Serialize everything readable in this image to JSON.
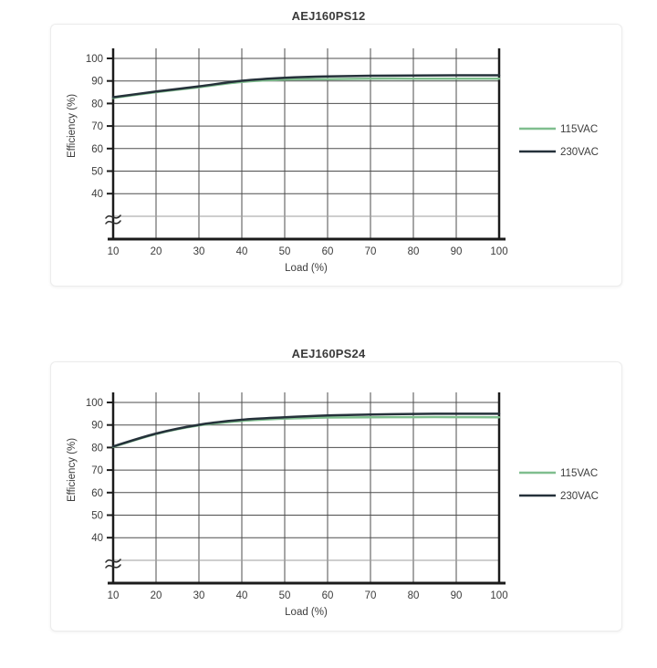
{
  "page": {
    "background_color": "#ffffff",
    "card_border_color": "#ececec"
  },
  "style": {
    "grid_color": "#4d4d4d",
    "break_gridline_color": "#9e9e9e",
    "axis_color": "#1b1b1b",
    "text_color": "#3c3c3c"
  },
  "chart_data": [
    {
      "type": "line",
      "title": "AEJ160PS12",
      "xlabel": "Load (%)",
      "ylabel": "Efficiency (%)",
      "x": [
        10,
        20,
        30,
        40,
        50,
        60,
        70,
        80,
        90,
        100
      ],
      "x_ticks": [
        10,
        20,
        30,
        40,
        50,
        60,
        70,
        80,
        90,
        100
      ],
      "y_ticks": [
        100,
        90,
        80,
        70,
        60,
        50,
        40
      ],
      "xlim": [
        10,
        100
      ],
      "ylim_display": [
        40,
        100
      ],
      "axis_break": true,
      "grid": true,
      "legend_position": "right",
      "series": [
        {
          "name": "115VAC",
          "color": "#7fbe8e",
          "values": [
            82.5,
            85.0,
            87.2,
            89.6,
            90.6,
            90.8,
            91.0,
            91.0,
            91.0,
            91.0
          ]
        },
        {
          "name": "230VAC",
          "color": "#25313a",
          "values": [
            82.8,
            85.3,
            87.6,
            90.1,
            91.4,
            92.0,
            92.3,
            92.4,
            92.5,
            92.5
          ]
        }
      ]
    },
    {
      "type": "line",
      "title": "AEJ160PS24",
      "xlabel": "Load (%)",
      "ylabel": "Efficiency (%)",
      "x": [
        10,
        20,
        30,
        40,
        50,
        60,
        70,
        80,
        90,
        100
      ],
      "x_ticks": [
        10,
        20,
        30,
        40,
        50,
        60,
        70,
        80,
        90,
        100
      ],
      "y_ticks": [
        100,
        90,
        80,
        70,
        60,
        50,
        40
      ],
      "xlim": [
        10,
        100
      ],
      "ylim_display": [
        40,
        100
      ],
      "axis_break": true,
      "grid": true,
      "legend_position": "right",
      "series": [
        {
          "name": "115VAC",
          "color": "#7fbe8e",
          "values": [
            80.3,
            86.0,
            89.8,
            91.8,
            92.8,
            93.3,
            93.4,
            93.5,
            93.5,
            93.4
          ]
        },
        {
          "name": "230VAC",
          "color": "#25313a",
          "values": [
            80.5,
            86.2,
            90.1,
            92.3,
            93.4,
            94.2,
            94.6,
            94.9,
            95.0,
            95.0
          ]
        }
      ]
    }
  ]
}
